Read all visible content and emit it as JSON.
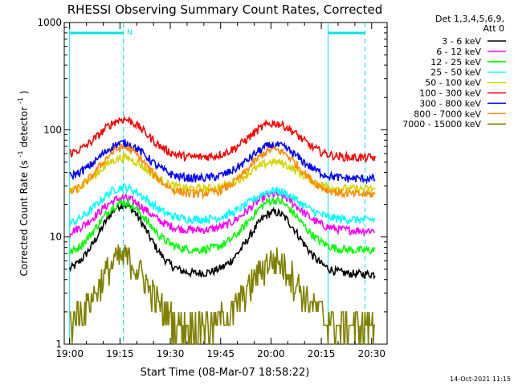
{
  "chart_data": {
    "type": "line",
    "title": "RHESSI Observing Summary Count Rates, Corrected",
    "xlabel": "Start Time (08-Mar-07 18:58:22)",
    "ylabel_main": "Corrected Count Rate (s",
    "ylabel_sup1": "-1",
    "ylabel_mid": " detector",
    "ylabel_sup2": "-1",
    "ylabel_end": ")",
    "y_scale": "log",
    "ylim": [
      1,
      1000
    ],
    "xlim_minutes": [
      -1.6,
      36.6
    ],
    "x_ticks": [
      {
        "minute": 0,
        "label": "19:00"
      },
      {
        "minute": 15,
        "label": "19:15"
      },
      {
        "minute": 30,
        "label": "19:30"
      },
      {
        "minute": 45,
        "label": "19:45"
      },
      {
        "minute": 60,
        "label": "20:00"
      },
      {
        "minute": 75,
        "label": "20:15"
      },
      {
        "minute": 90,
        "label": "20:30"
      }
    ],
    "y_ticks": [
      {
        "value": 1,
        "label": "1"
      },
      {
        "value": 10,
        "label": "10"
      },
      {
        "value": 100,
        "label": "100"
      },
      {
        "value": 1000,
        "label": "1000"
      }
    ],
    "legend_header_1": "Det 1,3,4,5,6,9,",
    "legend_header_2": "Att 0",
    "legend_position": "right",
    "flag_label": "N",
    "footer_date": "14-Oct-2021 11:15",
    "series": [
      {
        "name": "3 - 6 keV",
        "color": "#000000",
        "peaks": [
          20,
          17
        ],
        "base": 4.5
      },
      {
        "name": "6 - 12 keV",
        "color": "#ff00ff",
        "peaks": [
          23,
          25
        ],
        "base": 11.5
      },
      {
        "name": "12 - 25 keV",
        "color": "#00ff00",
        "peaks": [
          21,
          22
        ],
        "base": 7.5
      },
      {
        "name": "25 - 50 keV",
        "color": "#00ffff",
        "peaks": [
          29,
          27
        ],
        "base": 14.5
      },
      {
        "name": "50 - 100 keV",
        "color": "#d4d400",
        "peaks": [
          55,
          50
        ],
        "base": 28
      },
      {
        "name": "100 - 300 keV",
        "color": "#ff0000",
        "peaks": [
          125,
          115
        ],
        "base": 55
      },
      {
        "name": "300 - 800 keV",
        "color": "#0000ff",
        "peaks": [
          75,
          72
        ],
        "base": 35
      },
      {
        "name": "800 - 7000 keV",
        "color": "#ff8c00",
        "peaks": [
          68,
          65
        ],
        "base": 25
      },
      {
        "name": "7000 - 15000 keV",
        "color": "#808000",
        "peaks": [
          6.5,
          6
        ],
        "base": 1.5
      }
    ],
    "peak_minutes": [
      16,
      61
    ],
    "baseline_start": {
      "3 - 6 keV": 4.5,
      "6 - 12 keV": 10.5,
      "12 - 25 keV": 6.5,
      "25 - 50 keV": 12.5,
      "50 - 100 keV": 25,
      "100 - 300 keV": 57,
      "300 - 800 keV": 35,
      "800 - 7000 keV": 24,
      "7000 - 15000 keV": 1.5
    },
    "flag_intervals_minutes": [
      [
        0,
        16
      ],
      [
        77,
        88
      ]
    ],
    "vertical_markers_minutes": [
      0,
      16,
      77,
      88
    ]
  }
}
